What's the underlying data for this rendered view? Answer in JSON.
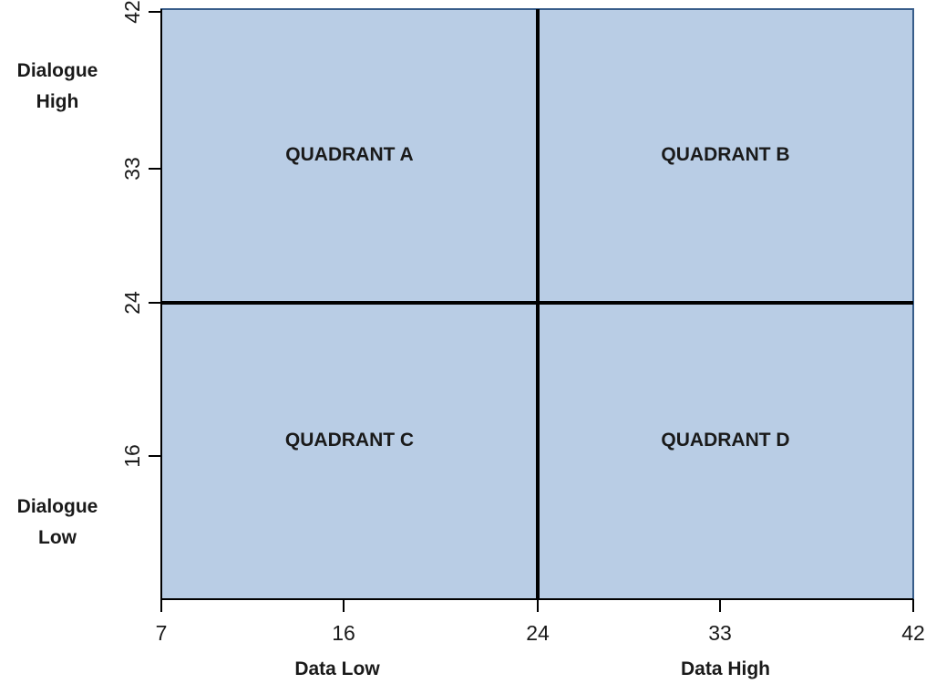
{
  "chart_data": {
    "type": "quadrant",
    "xlim": [
      7,
      42
    ],
    "ylim": [
      8,
      42
    ],
    "x_ticks": [
      7,
      16,
      24,
      33,
      42
    ],
    "y_ticks": [
      16,
      24,
      33,
      42
    ],
    "x_divider": 24,
    "y_divider": 24,
    "x_end_labels": {
      "low": "Data Low",
      "high": "Data High"
    },
    "y_end_labels": {
      "high": [
        "Dialogue",
        "High"
      ],
      "low": [
        "Dialogue",
        "Low"
      ]
    },
    "quadrants": [
      {
        "id": "A",
        "label": "QUADRANT A",
        "position": "top-left"
      },
      {
        "id": "B",
        "label": "QUADRANT B",
        "position": "top-right"
      },
      {
        "id": "C",
        "label": "QUADRANT C",
        "position": "bottom-left"
      },
      {
        "id": "D",
        "label": "QUADRANT D",
        "position": "bottom-right"
      }
    ],
    "colors": {
      "fill": "#b9cde5",
      "border": "#385d8a",
      "divider": "#000000",
      "axis": "#000000"
    },
    "grid": false
  }
}
